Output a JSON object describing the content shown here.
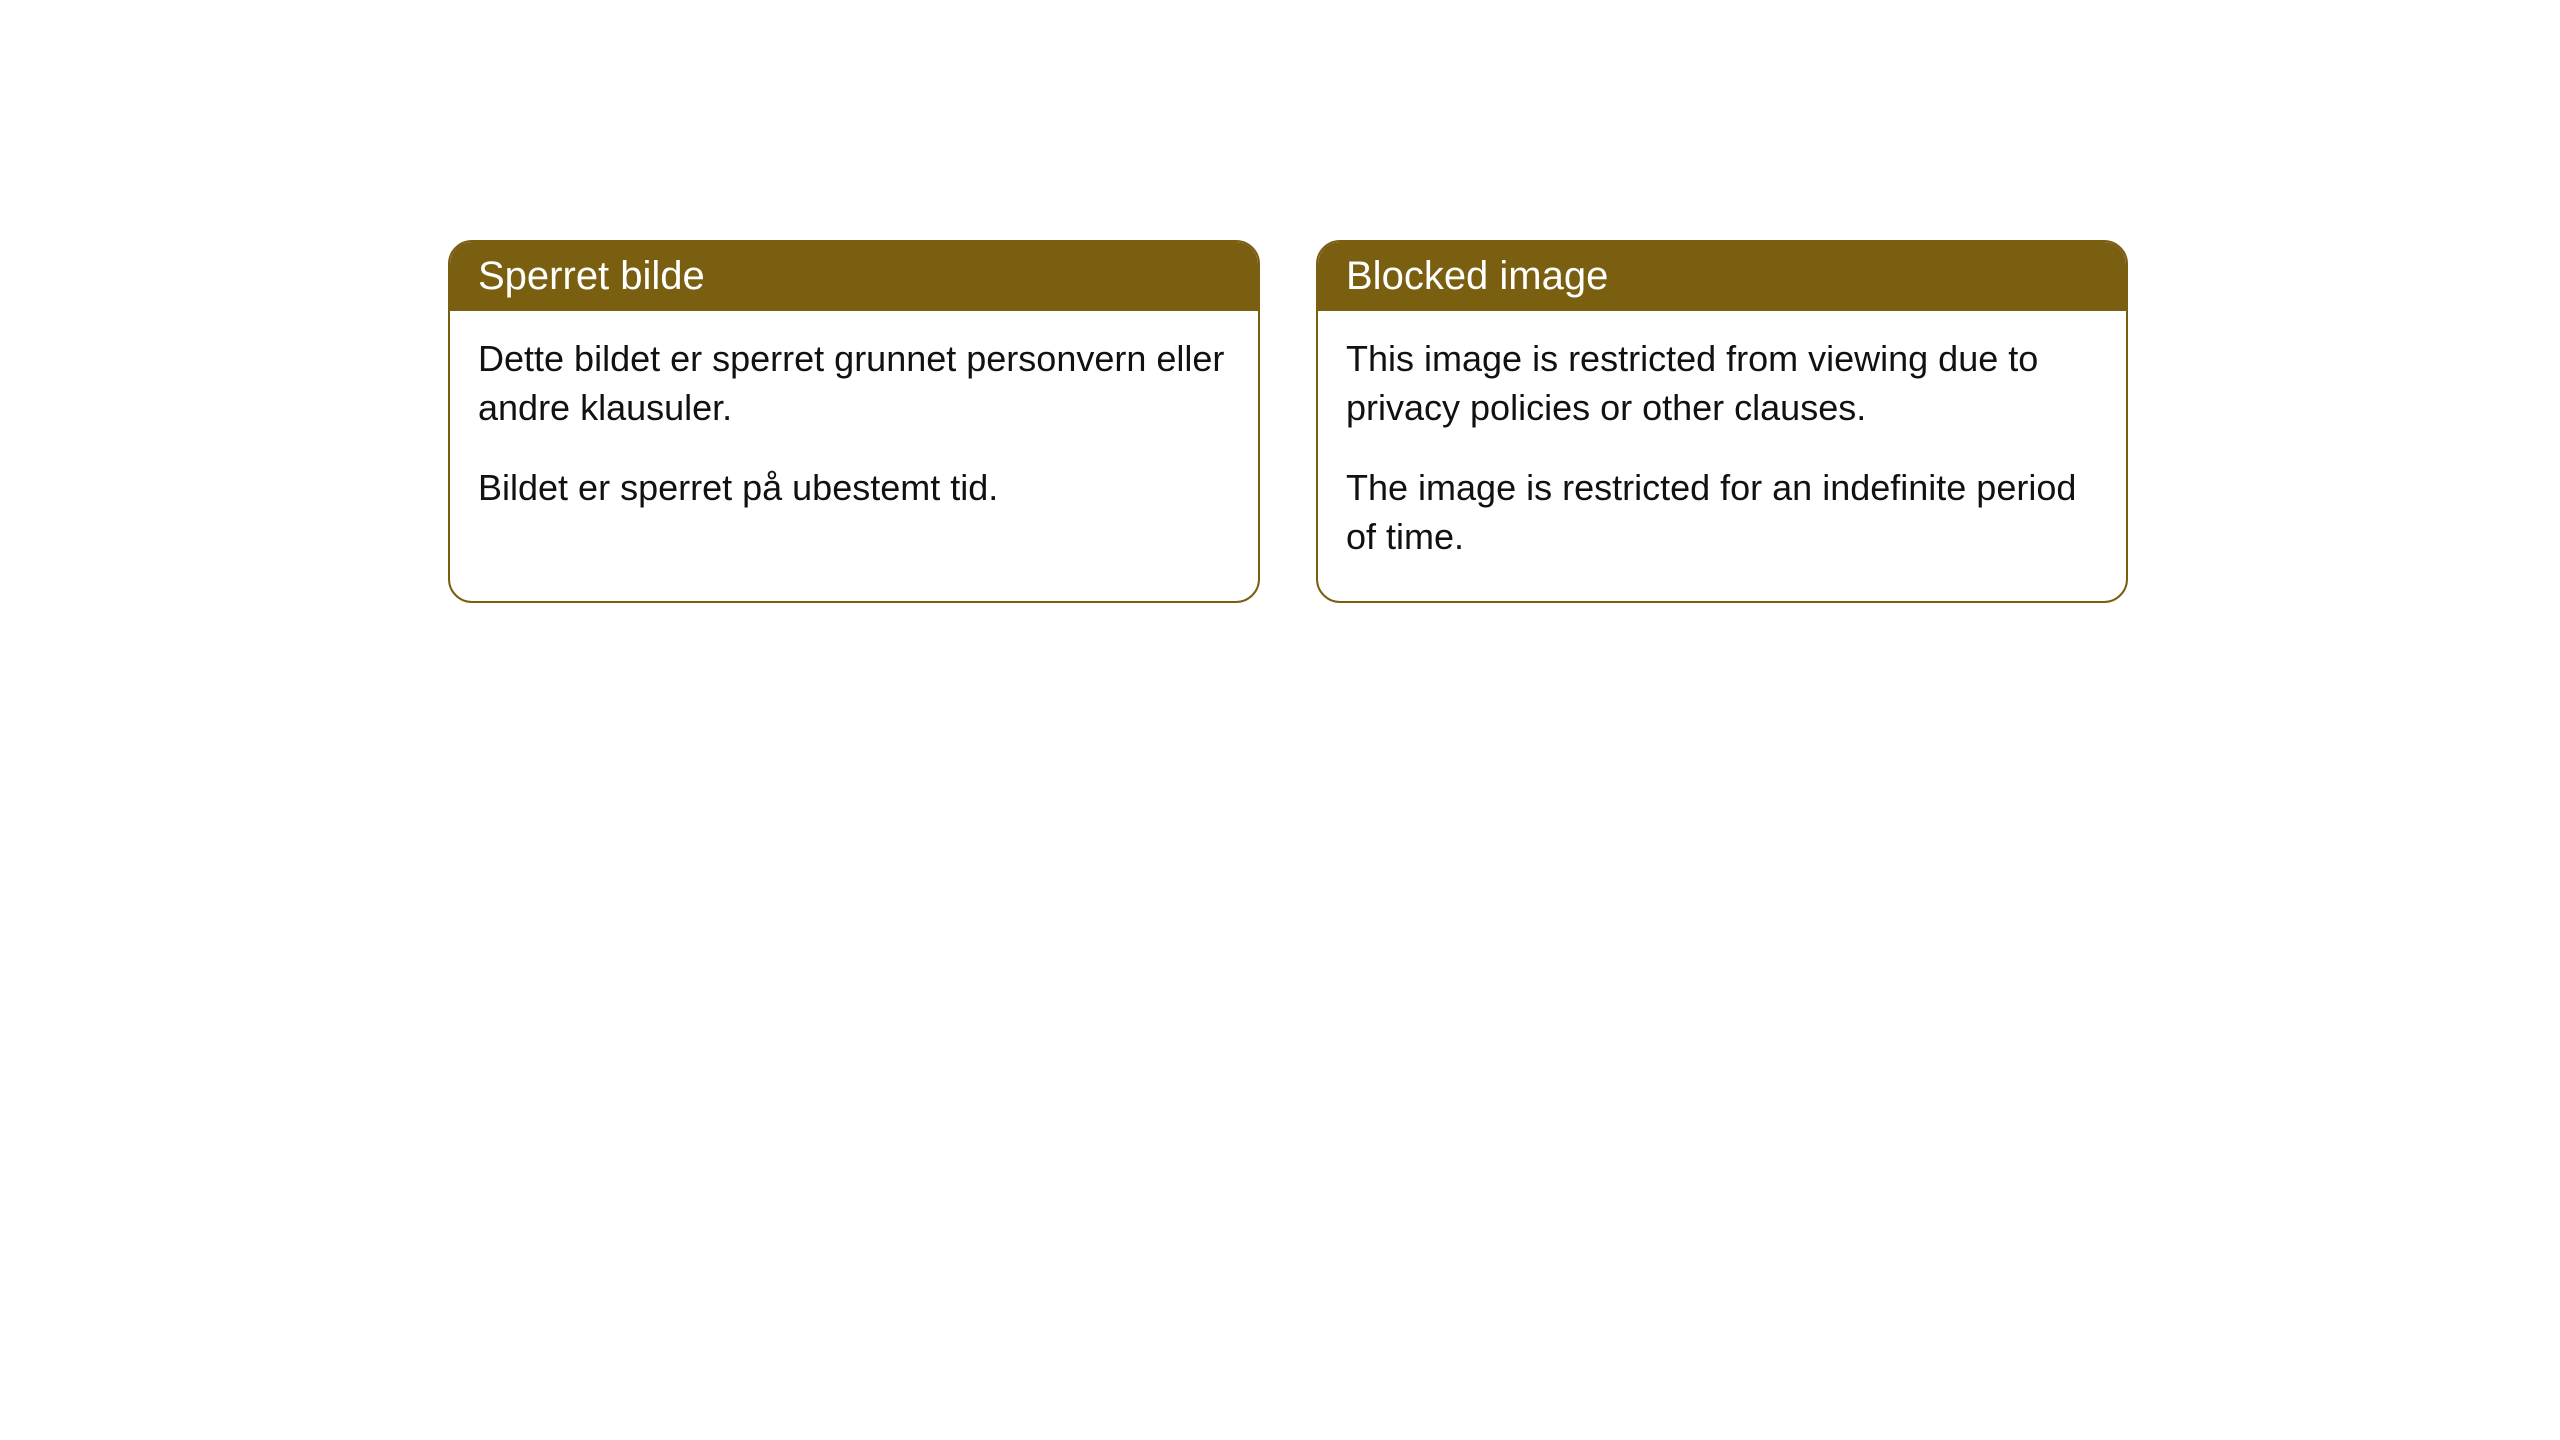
{
  "cards": [
    {
      "title": "Sperret bilde",
      "paragraph1": "Dette bildet er sperret grunnet personvern eller andre klausuler.",
      "paragraph2": "Bildet er sperret på ubestemt tid."
    },
    {
      "title": "Blocked image",
      "paragraph1": "This image is restricted from viewing due to privacy policies or other clauses.",
      "paragraph2": "The image is restricted for an indefinite period of time."
    }
  ],
  "styling": {
    "header_background": "#7a5f11",
    "header_text_color": "#ffffff",
    "border_color": "#7a5f11",
    "body_background": "#ffffff",
    "body_text_color": "#111111",
    "border_radius": 24,
    "title_fontsize": 40,
    "body_fontsize": 36
  }
}
